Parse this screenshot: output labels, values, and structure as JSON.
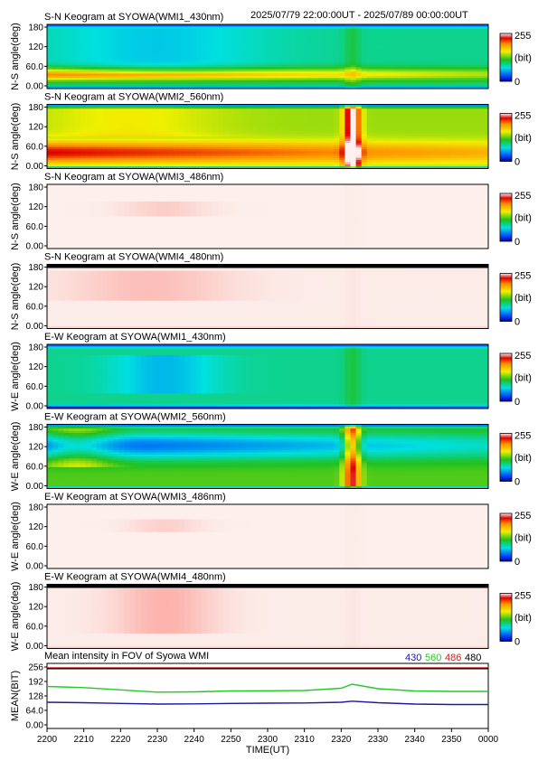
{
  "header": {
    "time_range": "2025/07/79 22:00:00UT - 2025/07/89 00:00:00UT"
  },
  "colorbar": {
    "max_label": "255",
    "unit_label": "(bit)",
    "min_label": "0"
  },
  "y_ticks": [
    "180",
    "120",
    "60.0",
    "0.00"
  ],
  "keograms": [
    {
      "title": "S-N Keogram at SYOWA(WMI1_430nm)",
      "ylabel": "N-S angle(deg)",
      "style": "green",
      "base": 90,
      "band": {
        "center": 40,
        "width": 18,
        "peak": 200
      },
      "blob": {
        "x": 2230,
        "w": 30,
        "a": 45,
        "b": 170,
        "strength": -25
      },
      "surge": 18
    },
    {
      "title": "S-N Keogram at SYOWA(WMI2_560nm)",
      "ylabel": "N-S angle(deg)",
      "style": "green",
      "base": 140,
      "band": {
        "center": 45,
        "width": 30,
        "peak": 230
      },
      "blob": {
        "x": 2222,
        "w": 25,
        "a": 90,
        "b": 180,
        "strength": 20
      },
      "surge": 120
    },
    {
      "title": "S-N Keogram at SYOWA(WMI3_486nm)",
      "ylabel": "N-S angle(deg)",
      "style": "pale",
      "base": 4,
      "band": {
        "center": 0,
        "width": 5,
        "peak": 0
      },
      "blob": {
        "x": 2232,
        "w": 12,
        "a": 90,
        "b": 130,
        "strength": 22
      },
      "surge": 3
    },
    {
      "title": "S-N Keogram at SYOWA(WMI4_480nm)",
      "ylabel": "N-S angle(deg)",
      "style": "pale",
      "base": 6,
      "band": {
        "center": 0,
        "width": 5,
        "peak": 30
      },
      "blob": {
        "x": 2228,
        "w": 22,
        "a": 80,
        "b": 160,
        "strength": 30
      },
      "surge": 4
    },
    {
      "title": "E-W Keogram at SYOWA(WMI1_430nm)",
      "ylabel": "W-E angle(deg)",
      "style": "green",
      "base": 90,
      "band": {
        "center": 0,
        "width": 8,
        "peak": 0
      },
      "blob": {
        "x": 2232,
        "w": 15,
        "a": 40,
        "b": 150,
        "strength": -30
      },
      "surge": 18
    },
    {
      "title": "E-W Keogram at SYOWA(WMI2_560nm)",
      "ylabel": "W-E angle(deg)",
      "style": "green",
      "base": 125,
      "band": {
        "center": 120,
        "width": 40,
        "peak": 30
      },
      "blob": {
        "x": 2208,
        "w": 10,
        "a": 60,
        "b": 180,
        "strength": 40
      },
      "surge": 110
    },
    {
      "title": "E-W Keogram at SYOWA(WMI3_486nm)",
      "ylabel": "W-E angle(deg)",
      "style": "pale",
      "base": 4,
      "band": {
        "center": 0,
        "width": 5,
        "peak": 0
      },
      "blob": {
        "x": 2232,
        "w": 10,
        "a": 100,
        "b": 140,
        "strength": 20
      },
      "surge": 3
    },
    {
      "title": "E-W Keogram at SYOWA(WMI4_480nm)",
      "ylabel": "W-E angle(deg)",
      "style": "pale",
      "base": 6,
      "band": {
        "center": 0,
        "width": 5,
        "peak": 30
      },
      "blob": {
        "x": 2232,
        "w": 14,
        "a": 40,
        "b": 170,
        "strength": 38
      },
      "surge": 4
    }
  ],
  "mean_panel": {
    "title": "Mean intensity in FOV of Syowa WMI",
    "ylabel": "MEAN(BIT)",
    "y_ticks": [
      "256",
      "192",
      "128",
      "64.0",
      "0.00"
    ],
    "legend": [
      {
        "label": "430",
        "color": "#1a1aa0"
      },
      {
        "label": "560",
        "color": "#22cc22"
      },
      {
        "label": "486",
        "color": "#cc2222"
      },
      {
        "label": "480",
        "color": "#000000"
      }
    ]
  },
  "x_ticks": [
    "2200",
    "2210",
    "2220",
    "2230",
    "2240",
    "2250",
    "2300",
    "2310",
    "2320",
    "2330",
    "2340",
    "2350",
    "0000"
  ],
  "xlabel": "TIME(UT)",
  "chart_data": {
    "type": "line",
    "title": "Mean intensity in FOV of Syowa WMI",
    "xlabel": "TIME(UT)",
    "ylabel": "MEAN(BIT)",
    "ylim": [
      0,
      256
    ],
    "x": [
      "2200",
      "2210",
      "2220",
      "2230",
      "2240",
      "2250",
      "2300",
      "2310",
      "2320",
      "2323",
      "2330",
      "2340",
      "2350",
      "0000"
    ],
    "series": [
      {
        "name": "430",
        "color": "#1a1aa0",
        "values": [
          100,
          98,
          95,
          92,
          93,
          95,
          96,
          97,
          100,
          105,
          98,
          92,
          90,
          90
        ]
      },
      {
        "name": "560",
        "color": "#22cc22",
        "values": [
          170,
          165,
          155,
          145,
          146,
          150,
          151,
          152,
          162,
          180,
          160,
          150,
          148,
          148
        ]
      },
      {
        "name": "486",
        "color": "#cc2222",
        "values": [
          252,
          252,
          252,
          252,
          252,
          252,
          252,
          252,
          252,
          252,
          252,
          252,
          252,
          252
        ]
      },
      {
        "name": "480",
        "color": "#000000",
        "values": [
          249,
          249,
          249,
          249,
          249,
          249,
          249,
          249,
          249,
          249,
          249,
          249,
          249,
          249
        ]
      }
    ]
  }
}
